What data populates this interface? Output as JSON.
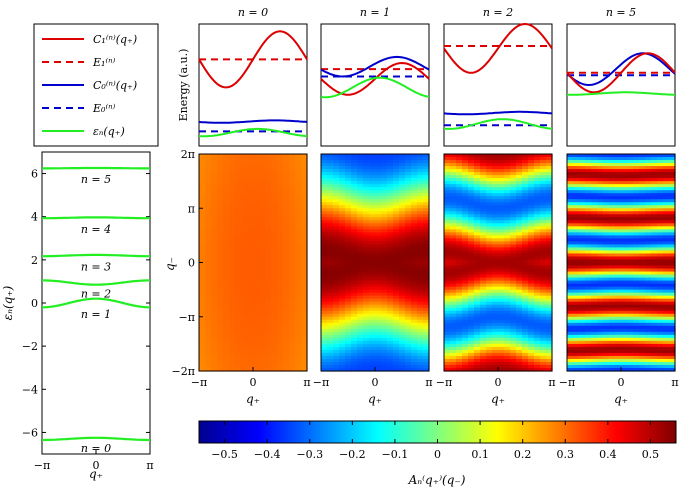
{
  "legend": {
    "entries": [
      {
        "label": "C₁⁽ⁿ⁾(q₊)",
        "color": "#dd0000",
        "dash": false
      },
      {
        "label": "E₁⁽ⁿ⁾",
        "color": "#dd0000",
        "dash": true
      },
      {
        "label": "C₀⁽ⁿ⁾(q₊)",
        "color": "#0000cc",
        "dash": false
      },
      {
        "label": "E₀⁽ⁿ⁾",
        "color": "#0000cc",
        "dash": true
      },
      {
        "label": "εₙ(q₊)",
        "color": "#22ee22",
        "dash": false
      }
    ]
  },
  "chart_data": [
    {
      "type": "line",
      "id": "band_structure",
      "xlabel": "q₊",
      "ylabel": "εₙ(q₊)",
      "xlim": [
        -3.1416,
        3.1416
      ],
      "ylim": [
        -7,
        7
      ],
      "xticks": [
        {
          "v": -3.1416,
          "label": "−π"
        },
        {
          "v": 0,
          "label": "0"
        },
        {
          "v": 3.1416,
          "label": "π"
        }
      ],
      "yticks": [
        {
          "v": -6,
          "label": "−6"
        },
        {
          "v": -4,
          "label": "−4"
        },
        {
          "v": -2,
          "label": "−2"
        },
        {
          "v": 0,
          "label": "0"
        },
        {
          "v": 2,
          "label": "2"
        },
        {
          "v": 4,
          "label": "4"
        },
        {
          "v": 6,
          "label": "6"
        }
      ],
      "series_color": "#22ee22",
      "bands": [
        {
          "label": "n = 0",
          "base": -6.3,
          "amp": 0.05
        },
        {
          "label": "n = 1",
          "base": 0.0,
          "amp": 0.2
        },
        {
          "label": "n = 2",
          "base": 0.95,
          "amp": -0.1
        },
        {
          "label": "n = 3",
          "base": 2.2,
          "amp": 0.03
        },
        {
          "label": "n = 4",
          "base": 3.95,
          "amp": 0.02
        },
        {
          "label": "n = 5",
          "base": 6.25,
          "amp": 0.01
        }
      ]
    },
    {
      "type": "line",
      "id": "energy_panels",
      "ylabel": "Energy (a.u.)",
      "panels": [
        {
          "title": "n = 0",
          "E1": 0.71,
          "C1_base": 0.71,
          "C1_amp": 0.23,
          "E0": 0.12,
          "C0_base": 0.2,
          "C0_amp": 0.01,
          "eps_base": 0.11,
          "eps_amp": 0.03
        },
        {
          "title": "n = 1",
          "E1": 0.63,
          "C1_base": 0.55,
          "C1_amp": 0.13,
          "E0": 0.57,
          "C0_base": 0.65,
          "C0_amp": 0.08,
          "eps_base": 0.48,
          "eps_amp": 0.08
        },
        {
          "title": "n = 2",
          "E1": 0.82,
          "C1_base": 0.8,
          "C1_amp": 0.2,
          "E0": 0.17,
          "C0_base": 0.27,
          "C0_amp": 0.01,
          "eps_base": 0.18,
          "eps_amp": 0.04
        },
        {
          "title": "n = 5",
          "E1": 0.6,
          "C1_base": 0.6,
          "C1_amp": 0.16,
          "E0": 0.58,
          "C0_base": 0.63,
          "C0_amp": 0.13,
          "eps_base": 0.43,
          "eps_amp": 0.01
        }
      ]
    },
    {
      "type": "heatmap",
      "id": "amplitude_maps",
      "xlabel": "q₊",
      "ylabel": "q₋",
      "xlim": [
        -3.1416,
        3.1416
      ],
      "ylim": [
        -6.2832,
        6.2832
      ],
      "xticks": [
        {
          "v": -3.1416,
          "label": "−π"
        },
        {
          "v": 0,
          "label": "0"
        },
        {
          "v": 3.1416,
          "label": "π"
        }
      ],
      "yticks": [
        {
          "v": 6.2832,
          "label": "2π"
        },
        {
          "v": 3.1416,
          "label": "π"
        },
        {
          "v": 0,
          "label": "0"
        },
        {
          "v": -3.1416,
          "label": "−π"
        },
        {
          "v": -6.2832,
          "label": "−2π"
        }
      ],
      "maps": [
        {
          "n": 0,
          "center": 0.32,
          "amp": 0.05,
          "freq": 0.5,
          "curv": 0.0
        },
        {
          "n": 1,
          "center": 0.1,
          "amp": 0.45,
          "freq": 0.5,
          "curv": 0.35
        },
        {
          "n": 2,
          "center": 0.1,
          "amp": 0.42,
          "freq": 1.0,
          "curv": 0.3
        },
        {
          "n": 5,
          "center": 0.08,
          "amp": 0.45,
          "freq": 2.5,
          "curv": 0.04
        }
      ],
      "colorbar": {
        "label": "Aₙ⁽q₊⁾(q₋)",
        "range": [
          -0.56,
          0.56
        ],
        "ticks": [
          {
            "v": -0.5,
            "label": "−0.5"
          },
          {
            "v": -0.4,
            "label": "−0.4"
          },
          {
            "v": -0.3,
            "label": "−0.3"
          },
          {
            "v": -0.2,
            "label": "−0.2"
          },
          {
            "v": -0.1,
            "label": "−0.1"
          },
          {
            "v": 0,
            "label": "0"
          },
          {
            "v": 0.1,
            "label": "0.1"
          },
          {
            "v": 0.2,
            "label": "0.2"
          },
          {
            "v": 0.3,
            "label": "0.3"
          },
          {
            "v": 0.4,
            "label": "0.4"
          },
          {
            "v": 0.5,
            "label": "0.5"
          }
        ]
      }
    }
  ]
}
